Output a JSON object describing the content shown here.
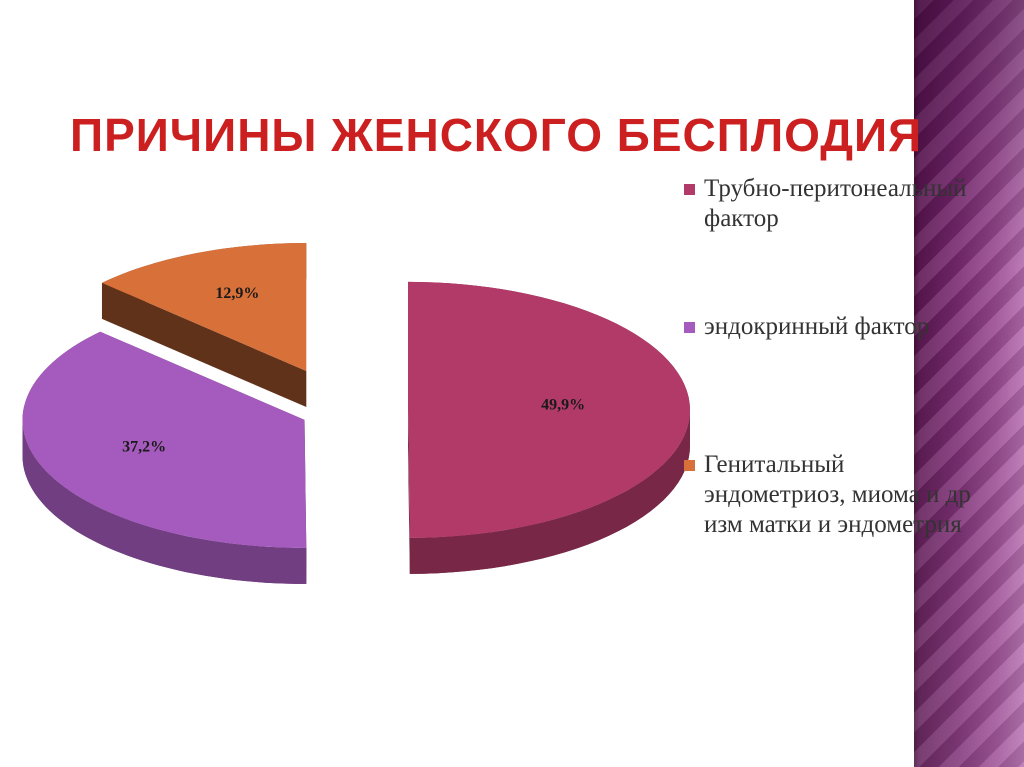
{
  "slide": {
    "title": "ПРИЧИНЫ ЖЕНСКОГО БЕСПЛОДИЯ"
  },
  "chart_data": {
    "type": "pie",
    "three_d": true,
    "exploded": true,
    "legend_position": "right",
    "categories": [
      "Трубно-перитонеальный фактор",
      "эндокринный фактор",
      "Генитальный эндометриоз, миома и др изм матки и эндометрия"
    ],
    "legend_labels": [
      "Трубно-перитонеальный фактор",
      " эндокринный фактор",
      "Генитальный эндометриоз, миома и др изм матки и эндометрия"
    ],
    "values": [
      49.9,
      37.2,
      12.9
    ],
    "data_labels": [
      "49,9%",
      "37,2%",
      "12,9%"
    ],
    "colors": [
      "#b23a68",
      "#a55bbd",
      "#d8703a"
    ]
  }
}
